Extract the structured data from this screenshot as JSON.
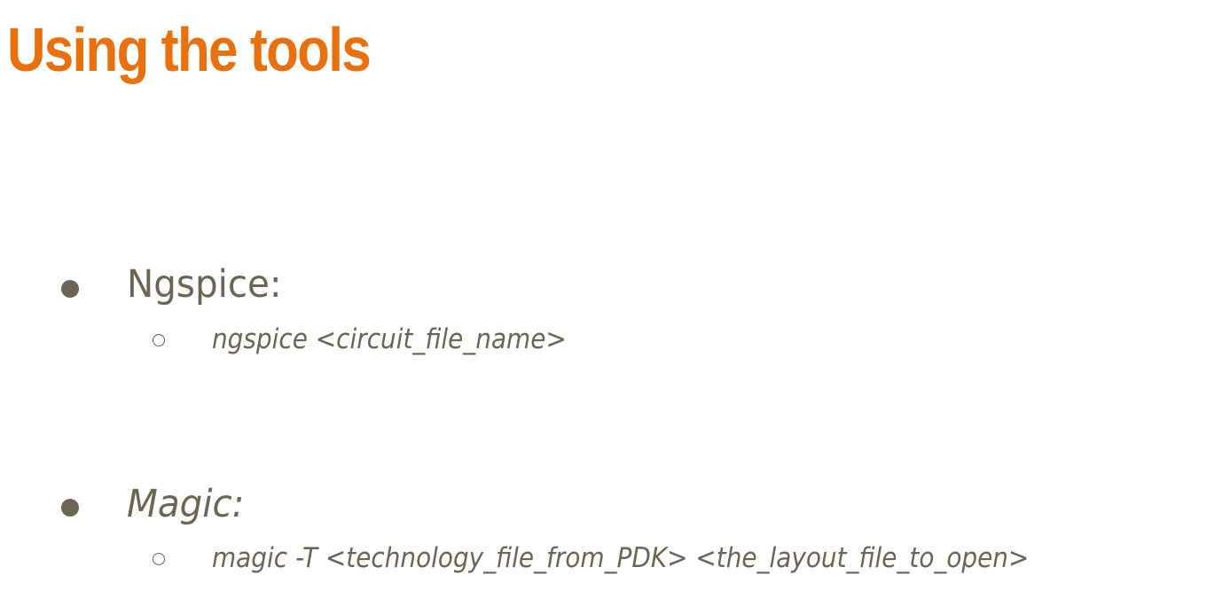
{
  "colors": {
    "title": "#E8700F",
    "body_text": "#6B6553",
    "bullet": "#6B6553"
  },
  "title": "Using the tools",
  "items": [
    {
      "label": "Ngspice:",
      "italic": false,
      "sub": [
        "ngspice <circuit_file_name>"
      ]
    },
    {
      "label": "Magic:",
      "italic": true,
      "sub": [
        "magic -T <technology_file_from_PDK> <the_layout_file_to_open>"
      ]
    }
  ]
}
